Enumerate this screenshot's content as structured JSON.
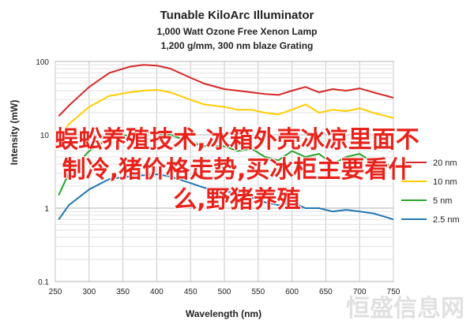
{
  "chart_data": {
    "type": "line",
    "title": "Tunable KiloArc Illuminator",
    "subtitle_lines": [
      "1,000 Watt Ozone Free Xenon Lamp",
      "1,200 g/mm, 300 nm blaze Grating"
    ],
    "xlabel": "Wavelength (nm)",
    "ylabel": "Intensity (mW)",
    "xlim": [
      250,
      750
    ],
    "ylim": [
      0.1,
      100
    ],
    "yscale": "log",
    "x_ticks": [
      250,
      300,
      350,
      400,
      450,
      500,
      550,
      600,
      650,
      700,
      750
    ],
    "y_ticks": [
      0.1,
      1,
      10,
      100
    ],
    "y_tick_labels": [
      "0.1",
      "1",
      "10",
      "100"
    ],
    "grid": true,
    "legend_position": "right",
    "series": [
      {
        "name": "20 nm",
        "color": "#d62728",
        "x": [
          255,
          270,
          300,
          330,
          360,
          380,
          400,
          420,
          450,
          470,
          500,
          520,
          540,
          560,
          580,
          600,
          620,
          640,
          660,
          680,
          700,
          720,
          740,
          750
        ],
        "y": [
          18,
          25,
          45,
          70,
          85,
          90,
          88,
          80,
          60,
          50,
          42,
          40,
          38,
          36,
          35,
          40,
          45,
          38,
          42,
          40,
          43,
          38,
          34,
          32
        ]
      },
      {
        "name": "10 nm",
        "color": "#ffcc00",
        "x": [
          255,
          270,
          300,
          330,
          360,
          380,
          400,
          420,
          450,
          470,
          500,
          520,
          540,
          560,
          580,
          600,
          620,
          640,
          660,
          680,
          700,
          720,
          740,
          750
        ],
        "y": [
          9,
          14,
          24,
          34,
          38,
          40,
          41,
          38,
          30,
          26,
          24,
          22,
          22,
          20,
          19,
          22,
          26,
          20,
          22,
          21,
          23,
          20,
          18,
          17
        ]
      },
      {
        "name": "5 nm",
        "color": "#2ca02c",
        "x": [
          255,
          270,
          300,
          330,
          360,
          380,
          400,
          420,
          450,
          470,
          500,
          520,
          540,
          560,
          580,
          600,
          620,
          640,
          660,
          680,
          700,
          720,
          740,
          750
        ],
        "y": [
          1.5,
          3,
          6,
          9,
          10,
          11,
          10.5,
          10,
          8,
          7,
          7,
          6,
          6.5,
          5,
          4.5,
          6,
          5,
          5.5,
          4,
          5,
          5.5,
          4.2,
          4,
          3.6
        ]
      },
      {
        "name": "2.5 nm",
        "color": "#1f77b4",
        "x": [
          255,
          270,
          300,
          330,
          360,
          380,
          400,
          420,
          450,
          470,
          500,
          520,
          540,
          560,
          580,
          600,
          620,
          640,
          660,
          680,
          700,
          720,
          740,
          750
        ],
        "y": [
          0.7,
          1.1,
          1.8,
          2.5,
          2.7,
          2.8,
          2.9,
          2.7,
          2.2,
          1.9,
          1.7,
          1.6,
          1.4,
          1.2,
          1.1,
          1.2,
          1.0,
          1.0,
          0.9,
          0.95,
          0.9,
          0.85,
          0.75,
          0.7
        ]
      }
    ]
  },
  "overlay": {
    "lines": [
      "蜈蚣养殖技术,冰箱外壳冰凉里面不",
      "制冷,猪价格走势,买冰柜主要看什",
      "么,野猪养殖"
    ],
    "color": "#e8221b"
  },
  "watermark": {
    "text": "恒盛信息网"
  }
}
